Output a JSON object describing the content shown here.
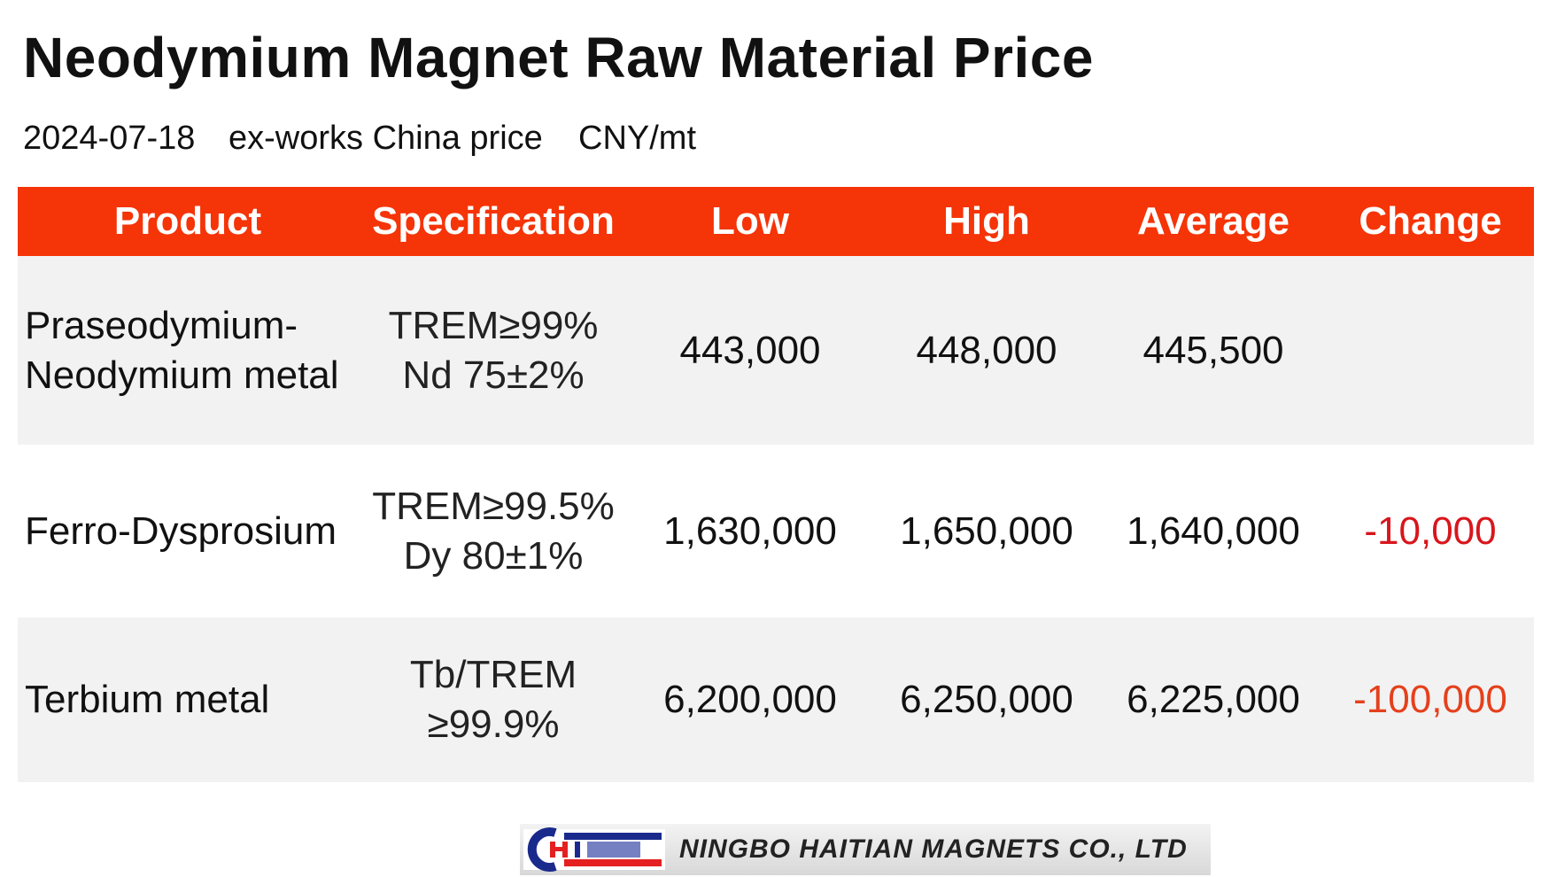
{
  "header": {
    "title": "Neodymium Magnet Raw Material Price",
    "date": "2024-07-18",
    "basis": "ex-works China price",
    "unit": "CNY/mt"
  },
  "table": {
    "columns": [
      "Product",
      "Specification",
      "Low",
      "High",
      "Average",
      "Change"
    ],
    "rows": [
      [
        [
          "Praseodymium-",
          "Neodymium metal"
        ],
        [
          "TREM≥99%",
          "Nd 75±2%"
        ],
        "443,000",
        "448,000",
        "445,500",
        null
      ],
      [
        [
          "Ferro-Dysprosium"
        ],
        [
          "TREM≥99.5%",
          "Dy 80±1%"
        ],
        "1,630,000",
        "1,650,000",
        "1,640,000",
        "-10,000"
      ],
      [
        [
          "Terbium metal"
        ],
        [
          "Tb/TREM",
          "≥99.9%"
        ],
        "6,200,000",
        "6,250,000",
        "6,225,000",
        "-100,000"
      ]
    ]
  },
  "footer": {
    "company": "NINGBO HAITIAN MAGNETS CO., LTD"
  }
}
